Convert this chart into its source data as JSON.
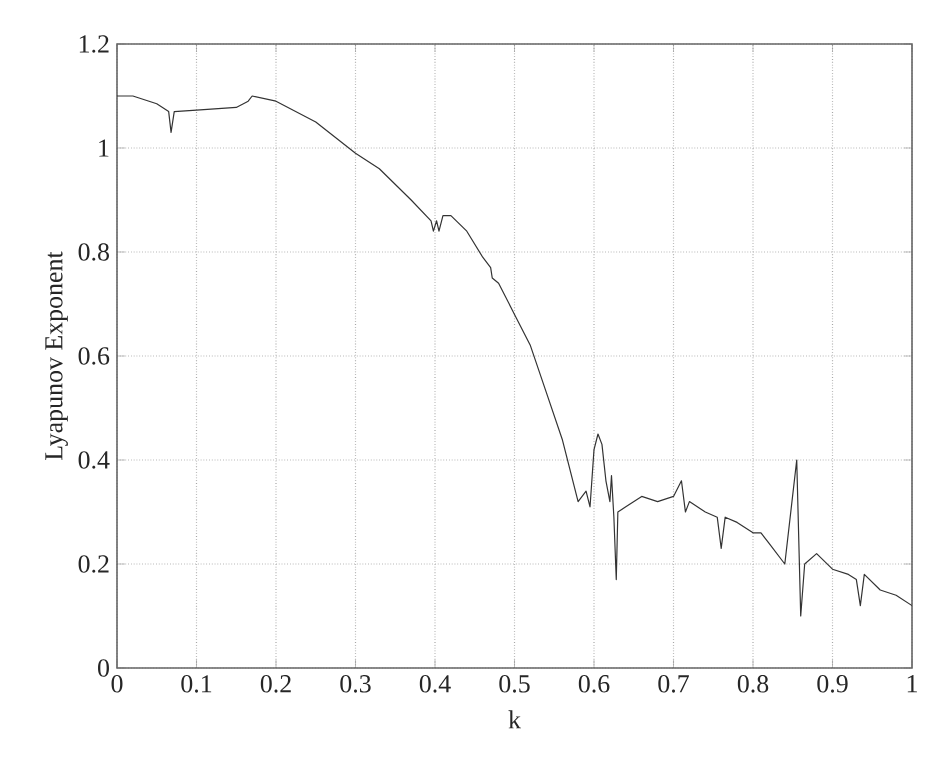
{
  "chart_data": {
    "type": "line",
    "xlabel": "k",
    "ylabel": "Lyapunov Exponent",
    "xlim": [
      0,
      1
    ],
    "ylim": [
      0,
      1.2
    ],
    "xticks": [
      0,
      0.1,
      0.2,
      0.3,
      0.4,
      0.5,
      0.6,
      0.7,
      0.8,
      0.9,
      1
    ],
    "yticks": [
      0,
      0.2,
      0.4,
      0.6,
      0.8,
      1,
      1.2
    ],
    "grid": true,
    "marker": "none",
    "line_style": "solid",
    "series": [
      {
        "color": "#333333",
        "x": [
          0,
          0.02,
          0.05,
          0.065,
          0.068,
          0.072,
          0.1,
          0.15,
          0.165,
          0.17,
          0.2,
          0.25,
          0.3,
          0.33,
          0.37,
          0.395,
          0.398,
          0.402,
          0.405,
          0.41,
          0.42,
          0.44,
          0.46,
          0.47,
          0.472,
          0.48,
          0.5,
          0.52,
          0.54,
          0.56,
          0.57,
          0.58,
          0.585,
          0.59,
          0.595,
          0.6,
          0.605,
          0.61,
          0.615,
          0.62,
          0.622,
          0.625,
          0.628,
          0.63,
          0.64,
          0.66,
          0.68,
          0.7,
          0.71,
          0.715,
          0.72,
          0.74,
          0.755,
          0.76,
          0.765,
          0.78,
          0.8,
          0.81,
          0.82,
          0.84,
          0.855,
          0.86,
          0.865,
          0.88,
          0.9,
          0.92,
          0.93,
          0.935,
          0.94,
          0.96,
          0.98,
          1
        ],
        "values": [
          1.1,
          1.1,
          1.085,
          1.07,
          1.03,
          1.07,
          1.073,
          1.078,
          1.09,
          1.1,
          1.09,
          1.05,
          0.99,
          0.96,
          0.9,
          0.86,
          0.84,
          0.86,
          0.84,
          0.87,
          0.87,
          0.84,
          0.79,
          0.77,
          0.75,
          0.74,
          0.68,
          0.62,
          0.53,
          0.44,
          0.38,
          0.32,
          0.33,
          0.34,
          0.31,
          0.42,
          0.45,
          0.43,
          0.36,
          0.32,
          0.37,
          0.29,
          0.17,
          0.3,
          0.31,
          0.33,
          0.32,
          0.33,
          0.36,
          0.3,
          0.32,
          0.3,
          0.29,
          0.23,
          0.29,
          0.28,
          0.26,
          0.26,
          0.24,
          0.2,
          0.4,
          0.1,
          0.2,
          0.22,
          0.19,
          0.18,
          0.17,
          0.12,
          0.18,
          0.15,
          0.14,
          0.12
        ]
      }
    ]
  }
}
